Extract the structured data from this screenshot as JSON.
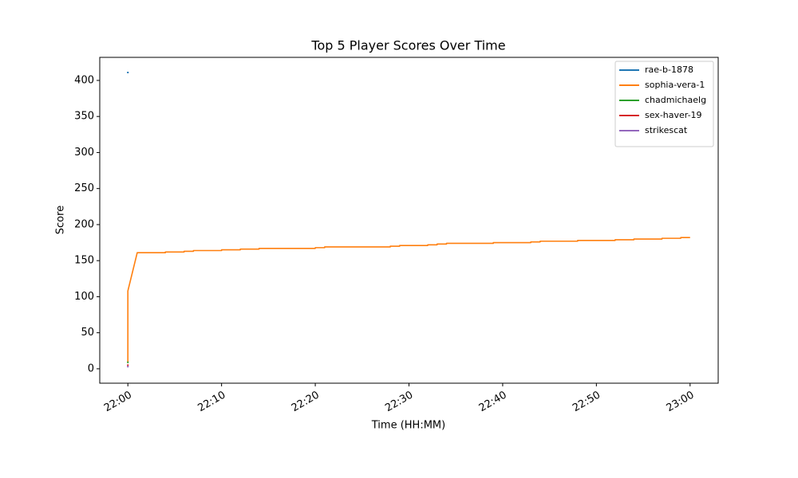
{
  "chart_data": {
    "type": "line",
    "title": "Top 5 Player Scores Over Time",
    "x_label": "Time (HH:MM)",
    "y_label": "Score",
    "xlim": [
      "21:57",
      "23:03"
    ],
    "xticks": [
      "22:00",
      "22:10",
      "22:20",
      "22:30",
      "22:40",
      "22:50",
      "23:00"
    ],
    "ylim": [
      -20,
      432
    ],
    "yticks": [
      0,
      50,
      100,
      150,
      200,
      250,
      300,
      350,
      400
    ],
    "legend": "upper right",
    "series": [
      {
        "name": "rae-b-1878",
        "color": "#1f77b4",
        "x": [
          "22:00"
        ],
        "values": [
          411
        ]
      },
      {
        "name": "sophia-vera-1",
        "color": "#ff7f0e",
        "x": [
          "22:00",
          "22:00",
          "22:01",
          "22:04",
          "22:04",
          "22:06",
          "22:06",
          "22:07",
          "22:07",
          "22:10",
          "22:10",
          "22:12",
          "22:12",
          "22:14",
          "22:14",
          "22:20",
          "22:20",
          "22:21",
          "22:21",
          "22:28",
          "22:28",
          "22:29",
          "22:29",
          "22:32",
          "22:32",
          "22:33",
          "22:33",
          "22:34",
          "22:34",
          "22:39",
          "22:39",
          "22:43",
          "22:43",
          "22:44",
          "22:44",
          "22:48",
          "22:48",
          "22:52",
          "22:52",
          "22:54",
          "22:54",
          "22:57",
          "22:57",
          "22:59",
          "22:59",
          "23:00"
        ],
        "values": [
          8,
          108,
          161,
          161,
          162,
          162,
          163,
          163,
          164,
          164,
          165,
          165,
          166,
          166,
          167,
          167,
          168,
          168,
          169,
          169,
          170,
          170,
          171,
          171,
          172,
          172,
          173,
          173,
          174,
          174,
          175,
          175,
          176,
          176,
          177,
          177,
          178,
          178,
          179,
          179,
          180,
          180,
          181,
          181,
          182,
          182
        ]
      },
      {
        "name": "chadmichaelg",
        "color": "#2ca02c",
        "x": [
          "22:00"
        ],
        "values": [
          9
        ]
      },
      {
        "name": "sex-haver-19",
        "color": "#d62728",
        "x": [
          "22:00"
        ],
        "values": [
          5
        ]
      },
      {
        "name": "strikescat",
        "color": "#9467bd",
        "x": [
          "22:00"
        ],
        "values": [
          3
        ]
      }
    ]
  }
}
